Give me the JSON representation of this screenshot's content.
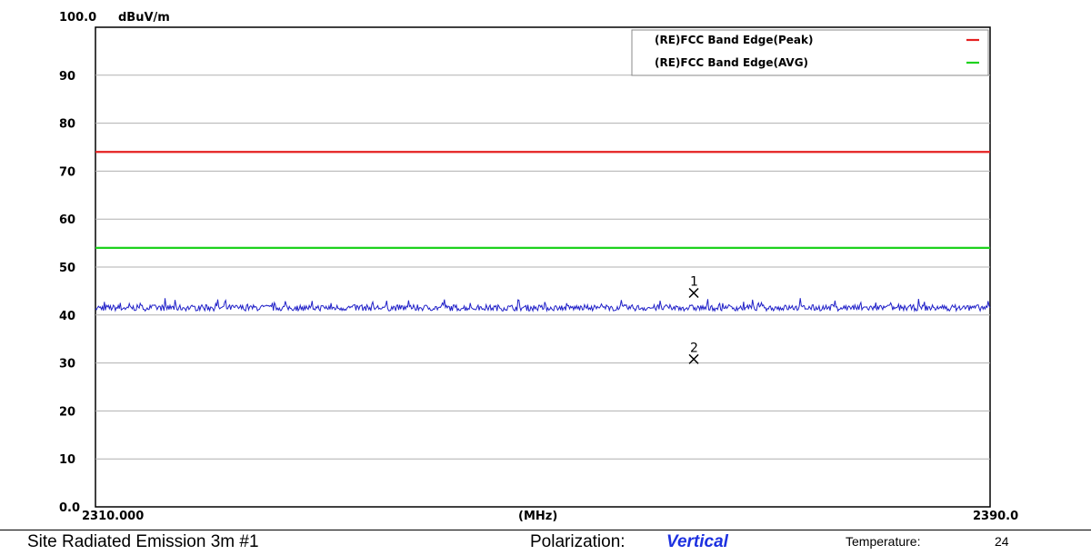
{
  "chart_data": {
    "type": "line",
    "ylabel_unit": "dBuV/m",
    "xlabel": "(MHz)",
    "xlim": [
      2310.0,
      2390.0
    ],
    "ylim": [
      0.0,
      100.0
    ],
    "x_tick_labels": {
      "start": "2310.000",
      "end": "2390.0"
    },
    "y_tick_labels": [
      "0.0",
      "10",
      "20",
      "30",
      "40",
      "50",
      "60",
      "70",
      "80",
      "90",
      "100.0"
    ],
    "grid": true,
    "legend_position": "top-right",
    "limit_lines": [
      {
        "name": "(RE)FCC Band Edge(Peak)",
        "value": 74,
        "color": "#e52020"
      },
      {
        "name": "(RE)FCC Band Edge(AVG)",
        "value": 54,
        "color": "#1ed21e"
      }
    ],
    "series": [
      {
        "values_approx_level": 41.5,
        "range": [
          40.6,
          43.8
        ],
        "color": "#2020c8"
      }
    ],
    "markers": [
      {
        "label": "1",
        "x": 2363.5,
        "y": 44.6
      },
      {
        "label": "2",
        "x": 2363.5,
        "y": 30.8
      }
    ]
  },
  "footer": {
    "site": "Site  Radiated Emission 3m #1",
    "polarization_label": "Polarization:",
    "polarization_value": "Vertical",
    "temperature_label": "Temperature:",
    "temperature_value": "24"
  }
}
